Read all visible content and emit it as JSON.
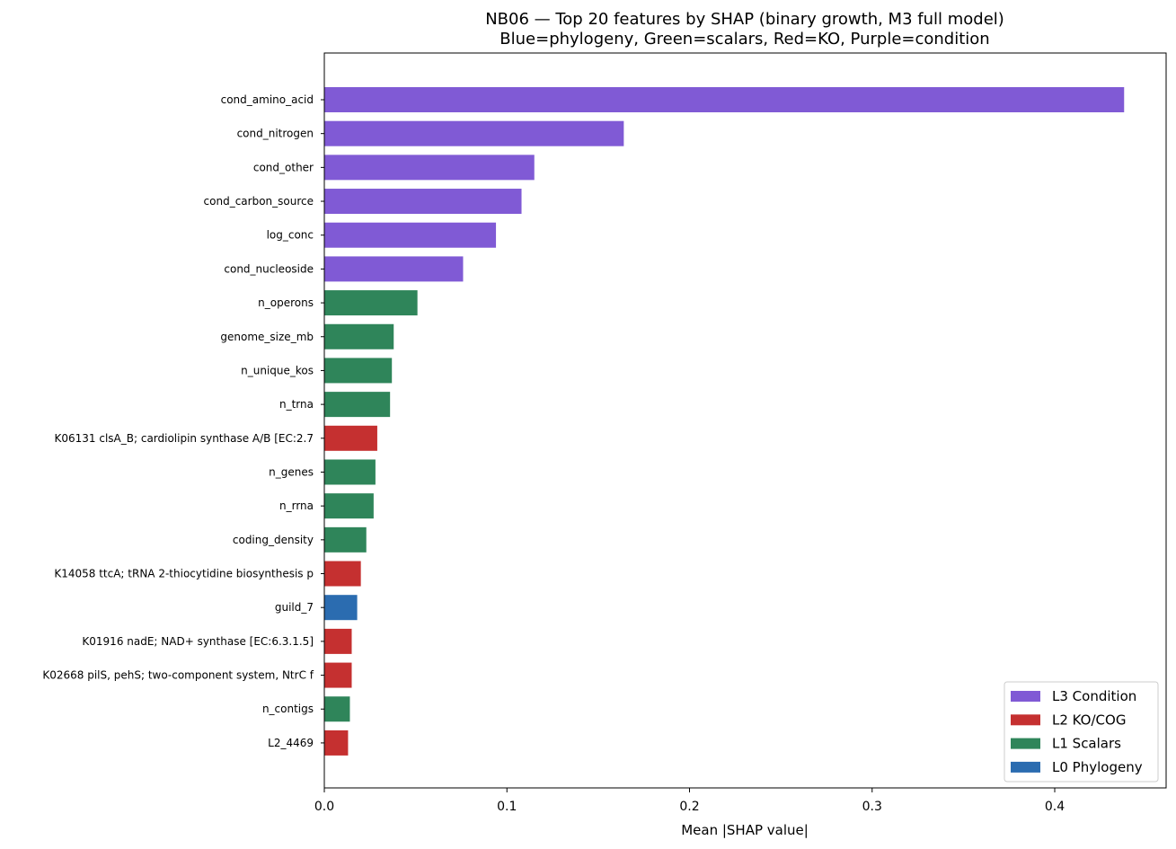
{
  "chart_data": {
    "type": "bar",
    "orientation": "horizontal",
    "title": "NB06 — Top 20 features by SHAP (binary growth, M3 full model)",
    "subtitle": "Blue=phylogeny, Green=scalars, Red=KO, Purple=condition",
    "xlabel": "Mean |SHAP value|",
    "ylabel": "",
    "xlim": [
      0,
      0.461
    ],
    "xticks": [
      0.0,
      0.1,
      0.2,
      0.3,
      0.4
    ],
    "xtick_labels": [
      "0.0",
      "0.1",
      "0.2",
      "0.3",
      "0.4"
    ],
    "grid": false,
    "legend_position": "lower-right",
    "categories": [
      "cond_amino_acid",
      "cond_nitrogen",
      "cond_other",
      "cond_carbon_source",
      "log_conc",
      "cond_nucleoside",
      "n_operons",
      "genome_size_mb",
      "n_unique_kos",
      "n_trna",
      "K06131 clsA_B; cardiolipin synthase A/B [EC:2.7",
      "n_genes",
      "n_rrna",
      "coding_density",
      "K14058 ttcA; tRNA 2-thiocytidine biosynthesis p",
      "guild_7",
      "K01916 nadE; NAD+ synthase [EC:6.3.1.5]",
      "K02668 pilS, pehS; two-component system, NtrC f",
      "n_contigs",
      "L2_4469"
    ],
    "values": [
      0.438,
      0.164,
      0.115,
      0.108,
      0.094,
      0.076,
      0.051,
      0.038,
      0.037,
      0.036,
      0.029,
      0.028,
      0.027,
      0.023,
      0.02,
      0.018,
      0.015,
      0.015,
      0.014,
      0.013
    ],
    "groups": [
      "L3",
      "L3",
      "L3",
      "L3",
      "L3",
      "L3",
      "L1",
      "L1",
      "L1",
      "L1",
      "L2",
      "L1",
      "L1",
      "L1",
      "L2",
      "L0",
      "L2",
      "L2",
      "L1",
      "L2"
    ],
    "legend": [
      {
        "key": "L3",
        "label": "L3 Condition",
        "color": "#805ad5"
      },
      {
        "key": "L2",
        "label": "L2 KO/COG",
        "color": "#c53030"
      },
      {
        "key": "L1",
        "label": "L1 Scalars",
        "color": "#2f855a"
      },
      {
        "key": "L0",
        "label": "L0 Phylogeny",
        "color": "#2b6cb0"
      }
    ]
  }
}
